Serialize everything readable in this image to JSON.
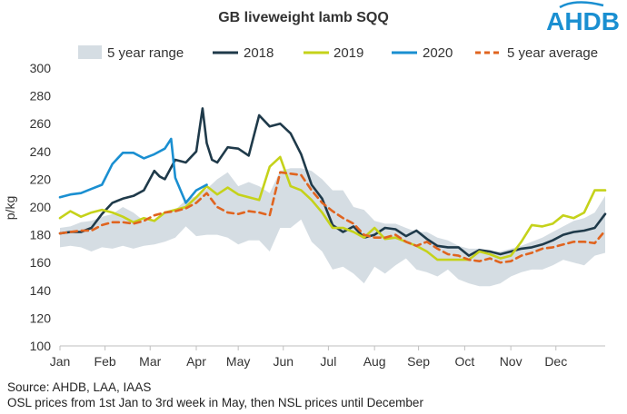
{
  "logo_text": "AHDB",
  "notes": {
    "source": "Source: AHDB, LAA, IAAS",
    "note": "OSL prices from 1st Jan to 3rd week in May, then NSL prices until December"
  },
  "chart_data": {
    "type": "line",
    "title": "GB liveweight lamb SQQ",
    "xlabel": "",
    "ylabel": "p/kg",
    "ylim": [
      100,
      300
    ],
    "yticks": [
      100,
      120,
      140,
      160,
      180,
      200,
      220,
      240,
      260,
      280,
      300
    ],
    "x_unit": "week",
    "xlim": [
      1,
      53
    ],
    "month_labels": [
      "Jan",
      "Feb",
      "Mar",
      "Apr",
      "May",
      "Jun",
      "Jul",
      "Aug",
      "Sep",
      "Oct",
      "Nov",
      "Dec"
    ],
    "month_label_weeks": [
      1,
      5.3,
      9.6,
      14,
      18,
      22.3,
      26.6,
      31,
      35.2,
      39.6,
      44,
      48.3
    ],
    "legend": {
      "position": "top",
      "labels": [
        "5 year range",
        "2018",
        "2019",
        "2020",
        "5 year average"
      ]
    },
    "range": {
      "name": "5 year range",
      "color": "#d5dde3",
      "weeks": [
        1,
        2,
        3,
        4,
        5,
        6,
        7,
        8,
        9,
        10,
        11,
        12,
        13,
        14,
        15,
        16,
        17,
        18,
        19,
        20,
        21,
        22,
        23,
        24,
        25,
        26,
        27,
        28,
        29,
        30,
        31,
        32,
        33,
        34,
        35,
        36,
        37,
        38,
        39,
        40,
        41,
        42,
        43,
        44,
        45,
        46,
        47,
        48,
        49,
        50,
        51,
        52,
        53
      ],
      "low": [
        171,
        172,
        171,
        168,
        171,
        170,
        172,
        170,
        172,
        173,
        175,
        178,
        186,
        179,
        180,
        180,
        178,
        173,
        176,
        176,
        168,
        185,
        185,
        191,
        175,
        168,
        155,
        157,
        152,
        145,
        157,
        152,
        158,
        163,
        155,
        153,
        150,
        155,
        148,
        145,
        143,
        143,
        145,
        150,
        153,
        155,
        155,
        158,
        162,
        160,
        158,
        165,
        167
      ],
      "high": [
        185,
        186,
        189,
        190,
        193,
        195,
        200,
        196,
        190,
        190,
        195,
        198,
        205,
        208,
        213,
        220,
        225,
        215,
        218,
        215,
        210,
        226,
        228,
        228,
        226,
        220,
        212,
        212,
        200,
        198,
        190,
        188,
        188,
        185,
        182,
        182,
        178,
        176,
        172,
        170,
        170,
        168,
        168,
        170,
        172,
        175,
        178,
        182,
        186,
        190,
        192,
        196,
        208
      ]
    },
    "series": [
      {
        "name": "2018",
        "color": "#1f3a4a",
        "dash": false,
        "weeks": [
          1,
          2,
          3,
          4,
          5,
          6,
          7,
          8,
          9,
          10,
          10.5,
          11,
          12,
          13,
          14,
          14.6,
          15,
          15.5,
          16,
          17,
          18,
          19,
          20,
          21,
          22,
          23,
          24,
          25,
          26,
          27,
          28,
          29,
          30,
          31,
          32,
          33,
          34,
          35,
          36,
          37,
          38,
          39,
          40,
          41,
          42,
          43,
          44,
          45,
          46,
          47,
          48,
          49,
          50,
          51,
          52,
          53
        ],
        "values": [
          181,
          182,
          182,
          185,
          195,
          203,
          206,
          208,
          212,
          226,
          222,
          220,
          234,
          232,
          240,
          271,
          246,
          234,
          232,
          243,
          242,
          237,
          266,
          258,
          260,
          253,
          238,
          216,
          206,
          187,
          182,
          186,
          178,
          180,
          185,
          184,
          179,
          183,
          177,
          172,
          171,
          171,
          165,
          169,
          168,
          166,
          168,
          170,
          171,
          173,
          176,
          180,
          182,
          183,
          185,
          195
        ]
      },
      {
        "name": "2019",
        "color": "#c5d21a",
        "dash": false,
        "weeks": [
          1,
          2,
          3,
          4,
          5,
          6,
          7,
          8,
          9,
          10,
          11,
          12,
          13,
          14,
          15,
          16,
          17,
          18,
          19,
          20,
          21,
          22,
          23,
          24,
          25,
          26,
          27,
          28,
          29,
          30,
          31,
          32,
          33,
          34,
          35,
          36,
          37,
          38,
          39,
          40,
          41,
          42,
          43,
          44,
          45,
          46,
          47,
          48,
          49,
          50,
          51,
          52,
          53
        ],
        "values": [
          192,
          197,
          193,
          196,
          198,
          196,
          193,
          189,
          192,
          190,
          196,
          198,
          200,
          207,
          215,
          209,
          214,
          209,
          207,
          205,
          229,
          236,
          215,
          212,
          205,
          196,
          185,
          185,
          182,
          178,
          185,
          177,
          178,
          175,
          172,
          168,
          162,
          162,
          162,
          162,
          168,
          166,
          163,
          165,
          175,
          187,
          186,
          188,
          194,
          192,
          196,
          212,
          212
        ]
      },
      {
        "name": "2020",
        "color": "#1a8fd1",
        "dash": false,
        "weeks": [
          1,
          2,
          3,
          4,
          5,
          6,
          7,
          8,
          9,
          10,
          11,
          11.6,
          12,
          13,
          14,
          15
        ],
        "values": [
          207,
          209,
          210,
          213,
          216,
          231,
          239,
          239,
          235,
          238,
          242,
          249,
          221,
          203,
          212,
          216
        ]
      },
      {
        "name": "5 year average",
        "color": "#e0641f",
        "dash": true,
        "weeks": [
          1,
          2,
          3,
          4,
          5,
          6,
          7,
          8,
          9,
          10,
          11,
          12,
          13,
          14,
          15,
          16,
          17,
          18,
          19,
          20,
          21,
          22,
          23,
          24,
          25,
          26,
          27,
          28,
          29,
          30,
          31,
          32,
          33,
          34,
          35,
          36,
          37,
          38,
          39,
          40,
          41,
          42,
          43,
          44,
          45,
          46,
          47,
          48,
          49,
          50,
          51,
          52,
          53
        ],
        "values": [
          181,
          182,
          183,
          183,
          187,
          189,
          189,
          188,
          190,
          194,
          196,
          197,
          199,
          203,
          210,
          200,
          196,
          195,
          197,
          196,
          194,
          225,
          224,
          223,
          212,
          203,
          197,
          192,
          188,
          180,
          178,
          178,
          180,
          175,
          172,
          175,
          170,
          166,
          165,
          162,
          161,
          163,
          160,
          161,
          165,
          167,
          170,
          171,
          173,
          175,
          175,
          174,
          183
        ]
      }
    ]
  }
}
